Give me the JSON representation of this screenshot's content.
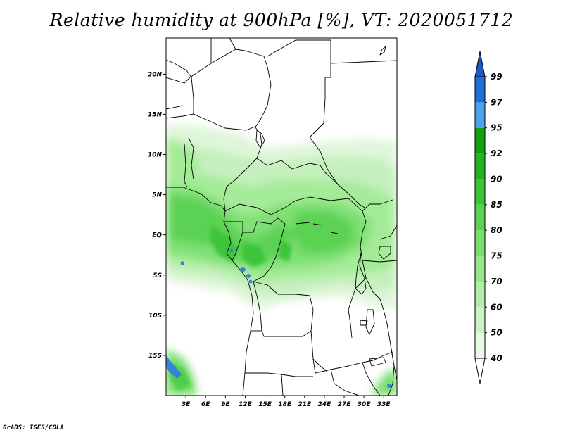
{
  "title": "Relative humidity at 900hPa [%], VT: 2020051712",
  "credit": "GrADS: IGES/COLA",
  "map": {
    "lon_range": [
      0,
      35
    ],
    "lat_range": [
      -20,
      24.5
    ],
    "lat_ticks": [
      {
        "value": 20,
        "label": "20N"
      },
      {
        "value": 15,
        "label": "15N"
      },
      {
        "value": 10,
        "label": "10N"
      },
      {
        "value": 5,
        "label": "5N"
      },
      {
        "value": 0,
        "label": "EQ"
      },
      {
        "value": -5,
        "label": "5S"
      },
      {
        "value": -10,
        "label": "10S"
      },
      {
        "value": -15,
        "label": "15S"
      }
    ],
    "lon_ticks": [
      {
        "value": 3,
        "label": "3E"
      },
      {
        "value": 6,
        "label": "6E"
      },
      {
        "value": 9,
        "label": "9E"
      },
      {
        "value": 12,
        "label": "12E"
      },
      {
        "value": 15,
        "label": "15E"
      },
      {
        "value": 18,
        "label": "18E"
      },
      {
        "value": 21,
        "label": "21E"
      },
      {
        "value": 24,
        "label": "24E"
      },
      {
        "value": 27,
        "label": "27E"
      },
      {
        "value": 30,
        "label": "30E"
      },
      {
        "value": 33,
        "label": "33E"
      }
    ]
  },
  "colorbar": {
    "levels": [
      "40",
      "50",
      "60",
      "70",
      "75",
      "80",
      "85",
      "90",
      "92",
      "95",
      "97",
      "99"
    ],
    "colors": [
      "#ffffff",
      "#e6f9e2",
      "#cdf4c6",
      "#b1eda8",
      "#96e68b",
      "#78de6e",
      "#5ad352",
      "#3bc43a",
      "#22b423",
      "#10a010",
      "#4aa3ee",
      "#1f6fd6",
      "#1c5bc2"
    ]
  }
}
